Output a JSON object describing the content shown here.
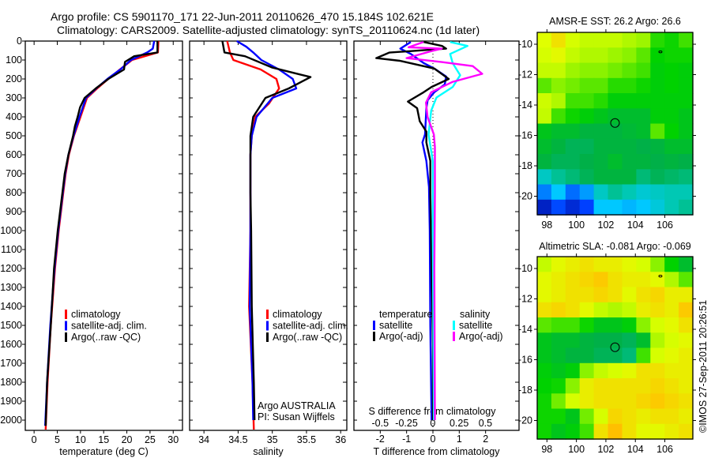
{
  "title": {
    "line1": "Argo profile: CS 5901170_171 22-Jun-2011 20110626_470 15.184S 102.621E",
    "line2": "Climatology: CARS2009. Satellite-adjusted climatology: synTS_20110624.nc (1d later)"
  },
  "colors": {
    "climatology": "#ff0000",
    "satellite": "#0000ff",
    "argo": "#000000",
    "sal_satellite": "#00ffff",
    "sal_argo": "#ff00ff"
  },
  "footer_stamp": "©IMOS 27-Sep-2011 20:26:51",
  "chart_data": [
    {
      "type": "line",
      "name": "temperature-profile",
      "xlabel": "temperature (deg C)",
      "ylabel": "",
      "xlim": [
        -1.9,
        32
      ],
      "ylim": [
        2054,
        0
      ],
      "xticks": [
        0,
        5,
        10,
        15,
        20,
        25,
        30
      ],
      "yticks": [
        0,
        100,
        200,
        300,
        400,
        500,
        600,
        700,
        800,
        900,
        1000,
        1100,
        1200,
        1300,
        1400,
        1500,
        1600,
        1700,
        1800,
        1900,
        2000
      ],
      "legend": [
        "climatology",
        "satellite-adj. clim.",
        "Argo(..raw -QC)"
      ],
      "series": [
        {
          "name": "climatology",
          "depth": [
            0,
            60,
            100,
            150,
            200,
            250,
            300,
            400,
            500,
            600,
            700,
            800,
            1000,
            1200,
            1500,
            1800,
            2050
          ],
          "values": [
            26.8,
            26.7,
            21.1,
            18.5,
            16.0,
            13.6,
            11.4,
            10.0,
            8.6,
            7.5,
            6.8,
            6.3,
            5.3,
            4.5,
            3.6,
            2.9,
            2.5
          ]
        },
        {
          "name": "satellite-adj. clim.",
          "depth": [
            0,
            40,
            60,
            100,
            150,
            200,
            250,
            300,
            400,
            500,
            600,
            700,
            800,
            1000,
            1200,
            1500,
            1800,
            2030
          ],
          "values": [
            25.9,
            25.6,
            24.4,
            20.9,
            18.6,
            15.8,
            13.4,
            11.2,
            9.8,
            8.5,
            7.4,
            6.7,
            6.2,
            5.2,
            4.4,
            3.5,
            2.8,
            2.4
          ]
        },
        {
          "name": "Argo(..raw -QC)",
          "depth": [
            0,
            60,
            80,
            110,
            150,
            200,
            250,
            300,
            350,
            400,
            450,
            500,
            600,
            700,
            800,
            1000,
            1200,
            1500,
            1800,
            2030
          ],
          "values": [
            26.6,
            26.6,
            21.6,
            19.6,
            19.4,
            16.0,
            13.3,
            10.9,
            9.9,
            9.4,
            8.8,
            8.4,
            7.4,
            6.6,
            6.1,
            5.1,
            4.3,
            3.6,
            2.8,
            2.5
          ]
        }
      ]
    },
    {
      "type": "line",
      "name": "salinity-profile",
      "xlabel": "salinity",
      "xlim": [
        33.79,
        36.09
      ],
      "ylim": [
        2054,
        0
      ],
      "xticks": [
        34,
        34.5,
        35,
        35.5,
        36
      ],
      "legend": [
        "climatology",
        "satellite-adj. clim.",
        "Argo(..raw -QC)"
      ],
      "annotation": [
        "Argo AUSTRALIA",
        "PI: Susan Wijffels"
      ],
      "series": [
        {
          "name": "climatology",
          "depth": [
            0,
            60,
            100,
            150,
            200,
            250,
            330,
            400,
            500,
            600,
            800,
            1000,
            1400,
            1800,
            2050
          ],
          "values": [
            34.34,
            34.38,
            34.43,
            34.83,
            35.06,
            35.1,
            34.95,
            34.75,
            34.7,
            34.68,
            34.68,
            34.68,
            34.66,
            34.71,
            34.73
          ]
        },
        {
          "name": "satellite-adj. clim.",
          "depth": [
            0,
            30,
            60,
            100,
            150,
            200,
            250,
            300,
            400,
            500,
            600,
            800,
            1000,
            1400,
            1800,
            2000
          ],
          "values": [
            34.48,
            34.62,
            34.72,
            34.84,
            35.1,
            35.3,
            35.35,
            35.0,
            34.77,
            34.7,
            34.68,
            34.68,
            34.68,
            34.67,
            34.71,
            34.72
          ]
        },
        {
          "name": "Argo(..raw -QC)",
          "depth": [
            0,
            60,
            80,
            140,
            190,
            250,
            300,
            400,
            500,
            600,
            800,
            1000,
            1400,
            1800,
            2000
          ],
          "values": [
            34.27,
            34.3,
            34.6,
            35.0,
            35.56,
            35.24,
            34.9,
            34.72,
            34.68,
            34.68,
            34.68,
            34.69,
            34.7,
            34.73,
            34.74
          ]
        }
      ]
    },
    {
      "type": "line",
      "name": "difference-profile",
      "xlabel": "T difference from climatology",
      "x2label": "S difference from climatology",
      "xlim": [
        -3.0,
        3.27
      ],
      "x2lim": [
        -0.75,
        0.82
      ],
      "ylim": [
        2054,
        0
      ],
      "xticks": [
        -2,
        -1,
        0,
        1,
        2
      ],
      "x2ticks": [
        -0.5,
        -0.25,
        0,
        0.25,
        0.5
      ],
      "x2ticklabels": [
        "-0.5",
        "-0.25",
        "0",
        "0.25",
        "0.5"
      ],
      "legend_headers": [
        "temperature",
        "salinity"
      ],
      "legend": [
        "satellite",
        "Argo(-adj)",
        "satellite",
        "Argo(-adj)"
      ],
      "series": [
        {
          "name": "T satellite",
          "axis": "T",
          "depth": [
            5,
            40,
            68,
            117,
            145,
            187,
            229,
            270,
            312,
            354,
            493,
            535,
            632,
            770,
            1000,
            1500,
            2000
          ],
          "values": [
            -0.84,
            -1.24,
            -0.84,
            -0.34,
            0.05,
            0.5,
            0.45,
            0.05,
            -0.2,
            -0.25,
            -0.3,
            -0.4,
            -0.25,
            -0.15,
            -0.12,
            -0.1,
            -0.05
          ]
        },
        {
          "name": "T Argo(-adj)",
          "axis": "T",
          "depth": [
            5,
            26,
            40,
            61,
            90,
            104,
            145,
            200,
            242,
            270,
            319,
            354,
            423,
            478,
            535,
            632,
            800,
            1200,
            1600,
            2000
          ],
          "values": [
            -0.35,
            0.35,
            0.5,
            -1.66,
            -2.15,
            -1.25,
            0.05,
            0.6,
            -0.05,
            -0.35,
            -0.95,
            -0.6,
            -0.5,
            -0.25,
            -0.25,
            -0.1,
            -0.1,
            -0.05,
            0.0,
            0.0
          ]
        },
        {
          "name": "S satellite",
          "axis": "S",
          "depth": [
            5,
            26,
            68,
            117,
            180,
            242,
            298,
            367,
            493,
            632,
            1000,
            1500,
            2000
          ],
          "values": [
            0.165,
            0.33,
            0.165,
            0.19,
            0.26,
            0.19,
            0.035,
            -0.015,
            -0.04,
            0.0,
            0.0,
            0.005,
            0.01
          ]
        },
        {
          "name": "S Argo(-adj)",
          "axis": "S",
          "depth": [
            5,
            33,
            40,
            54,
            90,
            111,
            132,
            173,
            215,
            270,
            325,
            400,
            493,
            560,
            800,
            1200,
            2000
          ],
          "values": [
            -0.09,
            -0.23,
            0.085,
            -0.02,
            -0.25,
            0.085,
            0.38,
            0.47,
            0.19,
            -0.015,
            -0.065,
            -0.05,
            0.01,
            0.02,
            0.02,
            0.015,
            0.02
          ]
        }
      ]
    },
    {
      "type": "heatmap",
      "name": "sst-map",
      "title": "AMSR-E SST: 26.2 Argo: 26.6",
      "xlim": [
        97.34,
        107.9
      ],
      "ylim": [
        -21.22,
        -9.22
      ],
      "xticks": [
        98,
        100,
        102,
        104,
        106
      ],
      "yticks": [
        -10,
        -12,
        -14,
        -16,
        -18,
        -20
      ],
      "marker": {
        "lon": 102.62,
        "lat": -15.18
      },
      "island": {
        "lon": 105.7,
        "lat": -10.5
      },
      "grid": [
        [
          0.75,
          0.8,
          0.74,
          0.72,
          0.72,
          0.72,
          0.7,
          0.68,
          0.58,
          0.56,
          0.6
        ],
        [
          0.74,
          0.76,
          0.72,
          0.7,
          0.7,
          0.68,
          0.66,
          0.62,
          0.55,
          0.56,
          0.56
        ],
        [
          0.72,
          0.72,
          0.68,
          0.66,
          0.66,
          0.64,
          0.62,
          0.6,
          0.54,
          0.55,
          0.54
        ],
        [
          0.62,
          0.66,
          0.64,
          0.62,
          0.62,
          0.58,
          0.58,
          0.56,
          0.54,
          0.55,
          0.54
        ],
        [
          0.73,
          0.7,
          0.6,
          0.6,
          0.58,
          0.54,
          0.54,
          0.54,
          0.54,
          0.54,
          0.54
        ],
        [
          0.72,
          0.6,
          0.56,
          0.54,
          0.52,
          0.5,
          0.5,
          0.5,
          0.54,
          0.54,
          0.52
        ],
        [
          0.52,
          0.5,
          0.5,
          0.48,
          0.48,
          0.48,
          0.49,
          0.5,
          0.62,
          0.55,
          0.52
        ],
        [
          0.5,
          0.48,
          0.46,
          0.46,
          0.48,
          0.48,
          0.48,
          0.47,
          0.48,
          0.5,
          0.5
        ],
        [
          0.48,
          0.46,
          0.46,
          0.47,
          0.48,
          0.5,
          0.48,
          0.48,
          0.47,
          0.48,
          0.47
        ],
        [
          0.38,
          0.42,
          0.44,
          0.46,
          0.48,
          0.48,
          0.48,
          0.44,
          0.46,
          0.45,
          0.44
        ],
        [
          0.22,
          0.3,
          0.2,
          0.25,
          0.38,
          0.42,
          0.4,
          0.36,
          0.38,
          0.4,
          0.4
        ],
        [
          0.08,
          0.16,
          0.1,
          0.15,
          0.3,
          0.3,
          0.28,
          0.3,
          0.35,
          0.4,
          0.42
        ]
      ]
    },
    {
      "type": "heatmap",
      "name": "sla-map",
      "title": "Altimetric SLA: -0.081 Argo: -0.069",
      "xlim": [
        97.34,
        107.9
      ],
      "ylim": [
        -21.22,
        -9.22
      ],
      "xticks": [
        98,
        100,
        102,
        104,
        106
      ],
      "yticks": [
        -10,
        -12,
        -14,
        -16,
        -18,
        -20
      ],
      "marker": {
        "lon": 102.62,
        "lat": -15.18
      },
      "island": {
        "lon": 105.7,
        "lat": -10.5
      },
      "grid": [
        [
          0.72,
          0.76,
          0.78,
          0.8,
          0.78,
          0.78,
          0.76,
          0.74,
          0.66,
          0.55,
          0.5
        ],
        [
          0.76,
          0.78,
          0.8,
          0.82,
          0.84,
          0.8,
          0.78,
          0.78,
          0.76,
          0.7,
          0.62
        ],
        [
          0.76,
          0.78,
          0.8,
          0.8,
          0.82,
          0.8,
          0.76,
          0.8,
          0.82,
          0.78,
          0.78
        ],
        [
          0.8,
          0.82,
          0.8,
          0.76,
          0.72,
          0.7,
          0.72,
          0.78,
          0.8,
          0.78,
          0.84
        ],
        [
          0.62,
          0.6,
          0.6,
          0.56,
          0.52,
          0.52,
          0.54,
          0.66,
          0.74,
          0.76,
          0.8
        ],
        [
          0.52,
          0.5,
          0.5,
          0.48,
          0.47,
          0.47,
          0.46,
          0.5,
          0.7,
          0.74,
          0.76
        ],
        [
          0.52,
          0.5,
          0.48,
          0.48,
          0.46,
          0.46,
          0.44,
          0.6,
          0.74,
          0.76,
          0.78
        ],
        [
          0.54,
          0.52,
          0.54,
          0.66,
          0.72,
          0.74,
          0.76,
          0.8,
          0.8,
          0.78,
          0.78
        ],
        [
          0.55,
          0.56,
          0.66,
          0.78,
          0.8,
          0.8,
          0.8,
          0.8,
          0.82,
          0.8,
          0.78
        ],
        [
          0.56,
          0.64,
          0.74,
          0.78,
          0.8,
          0.8,
          0.8,
          0.82,
          0.84,
          0.82,
          0.8
        ],
        [
          0.56,
          0.56,
          0.52,
          0.64,
          0.74,
          0.82,
          0.8,
          0.78,
          0.8,
          0.8,
          0.78
        ],
        [
          0.56,
          0.52,
          0.54,
          0.6,
          0.8,
          0.86,
          0.8,
          0.76,
          0.76,
          0.78,
          0.8
        ]
      ]
    }
  ]
}
